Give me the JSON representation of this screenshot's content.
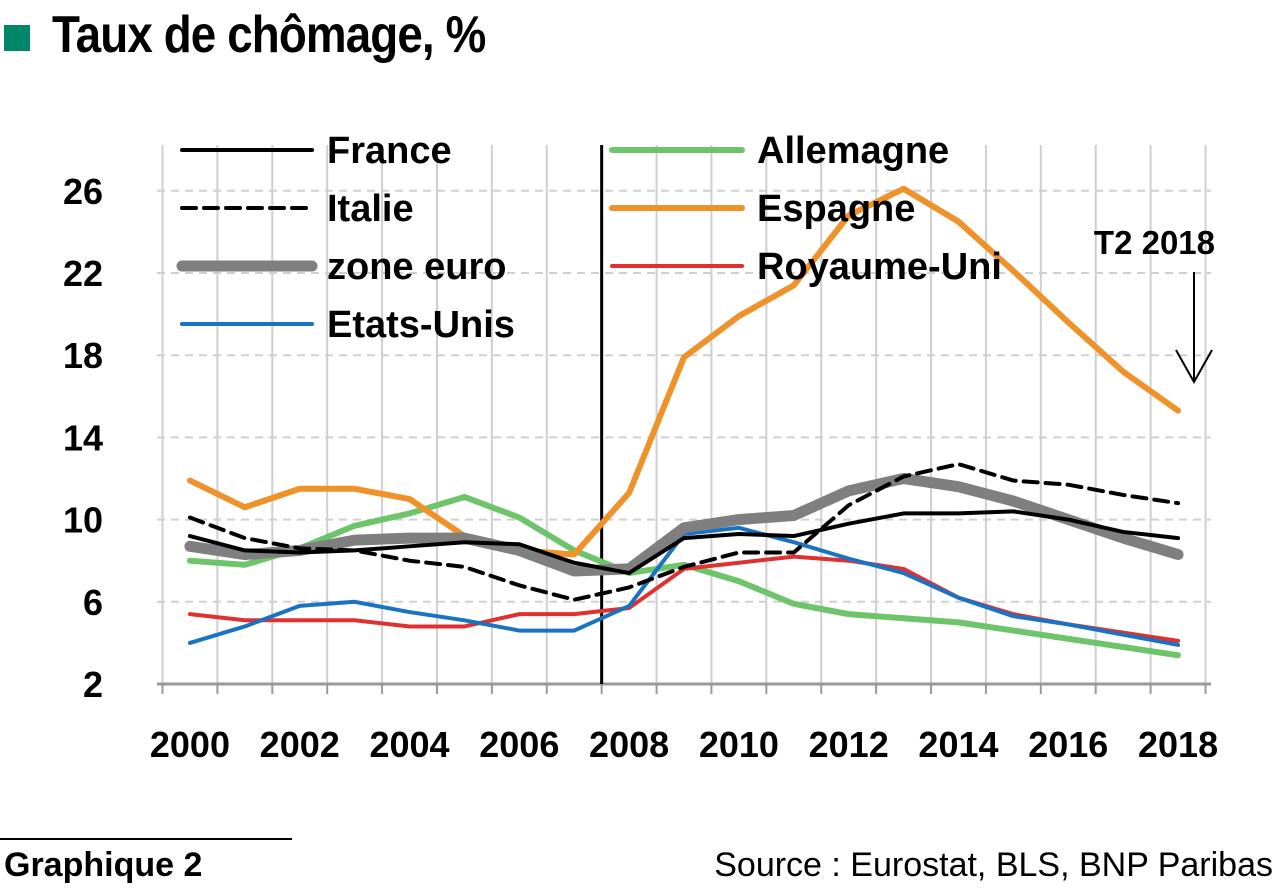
{
  "header": {
    "title": "Taux de chômage, %",
    "marker_color": "#00876a"
  },
  "footer": {
    "label": "Graphique 2",
    "source": "Source : Eurostat, BLS, BNP Paribas"
  },
  "chart_data": {
    "type": "line",
    "title": "Taux de chômage, %",
    "xlabel": "",
    "ylabel": "",
    "xlim": [
      1999.9,
      2019.1
    ],
    "ylim": [
      2,
      28
    ],
    "x_ticks": [
      2000,
      2002,
      2004,
      2006,
      2008,
      2010,
      2012,
      2014,
      2016,
      2018
    ],
    "y_ticks": [
      2,
      6,
      10,
      14,
      18,
      22,
      26
    ],
    "grid": "vertical and horizontal dashed",
    "vertical_marker": 2008,
    "annotation": {
      "text": "T2  2018",
      "x": 2018.6,
      "y": 15.5
    },
    "legend_position": "top-left, two columns",
    "series": [
      {
        "name": "France",
        "color": "#000000",
        "dash": "solid",
        "x": [
          2000,
          2001,
          2002,
          2003,
          2004,
          2005,
          2006,
          2007,
          2008,
          2009,
          2010,
          2011,
          2012,
          2013,
          2014,
          2015,
          2016,
          2017,
          2018.5
        ],
        "values": [
          9.2,
          8.5,
          8.4,
          8.5,
          8.7,
          8.9,
          8.8,
          7.9,
          7.4,
          9.1,
          9.3,
          9.2,
          9.8,
          10.3,
          10.3,
          10.4,
          10.0,
          9.4,
          9.1
        ]
      },
      {
        "name": "Italie",
        "color": "#000000",
        "dash": "dashed",
        "x": [
          2000,
          2001,
          2002,
          2003,
          2004,
          2005,
          2006,
          2007,
          2008,
          2009,
          2010,
          2011,
          2012,
          2013,
          2014,
          2015,
          2016,
          2017,
          2018.5
        ],
        "values": [
          10.1,
          9.1,
          8.6,
          8.5,
          8.0,
          7.7,
          6.8,
          6.1,
          6.7,
          7.7,
          8.4,
          8.4,
          10.7,
          12.1,
          12.7,
          11.9,
          11.7,
          11.2,
          10.8
        ]
      },
      {
        "name": "zone euro",
        "color": "#7f7f7f",
        "dash": "thick",
        "x": [
          2000,
          2001,
          2002,
          2003,
          2004,
          2005,
          2006,
          2007,
          2008,
          2009,
          2010,
          2011,
          2012,
          2013,
          2014,
          2015,
          2016,
          2017,
          2018.5
        ],
        "values": [
          8.7,
          8.3,
          8.5,
          9.0,
          9.1,
          9.1,
          8.5,
          7.5,
          7.6,
          9.6,
          10.0,
          10.2,
          11.4,
          12.0,
          11.6,
          10.9,
          10.0,
          9.1,
          8.3
        ]
      },
      {
        "name": "Etats-Unis",
        "color": "#1a72c2",
        "dash": "solid",
        "x": [
          2000,
          2001,
          2002,
          2003,
          2004,
          2005,
          2006,
          2007,
          2008,
          2009,
          2010,
          2011,
          2012,
          2013,
          2014,
          2015,
          2016,
          2017,
          2018.5
        ],
        "values": [
          4.0,
          4.8,
          5.8,
          6.0,
          5.5,
          5.1,
          4.6,
          4.6,
          5.8,
          9.3,
          9.6,
          8.9,
          8.1,
          7.4,
          6.2,
          5.3,
          4.9,
          4.4,
          3.9
        ]
      },
      {
        "name": "Allemagne",
        "color": "#6ec46a",
        "dash": "thick",
        "x": [
          2000,
          2001,
          2002,
          2003,
          2004,
          2005,
          2006,
          2007,
          2008,
          2009,
          2010,
          2011,
          2012,
          2013,
          2014,
          2015,
          2016,
          2017,
          2018.5
        ],
        "values": [
          8.0,
          7.8,
          8.6,
          9.7,
          10.3,
          11.1,
          10.1,
          8.5,
          7.4,
          7.8,
          7.0,
          5.9,
          5.4,
          5.2,
          5.0,
          4.6,
          4.2,
          3.8,
          3.4
        ]
      },
      {
        "name": "Espagne",
        "color": "#f0922a",
        "dash": "thick",
        "x": [
          2000,
          2001,
          2002,
          2003,
          2004,
          2005,
          2006,
          2007,
          2008,
          2009,
          2010,
          2011,
          2012,
          2013,
          2014,
          2015,
          2016,
          2017,
          2018.5
        ],
        "values": [
          11.9,
          10.6,
          11.5,
          11.5,
          11.0,
          9.2,
          8.5,
          8.3,
          11.3,
          17.9,
          19.9,
          21.4,
          24.8,
          26.1,
          24.5,
          22.1,
          19.6,
          17.2,
          15.3
        ]
      },
      {
        "name": "Royaume-Uni",
        "color": "#e03030",
        "dash": "solid",
        "x": [
          2000,
          2001,
          2002,
          2003,
          2004,
          2005,
          2006,
          2007,
          2008,
          2009,
          2010,
          2011,
          2012,
          2013,
          2014,
          2015,
          2016,
          2017,
          2018.5
        ],
        "values": [
          5.4,
          5.1,
          5.1,
          5.1,
          4.8,
          4.8,
          5.4,
          5.4,
          5.7,
          7.6,
          7.9,
          8.2,
          8.0,
          7.6,
          6.2,
          5.4,
          4.9,
          4.5,
          4.1
        ]
      }
    ]
  }
}
